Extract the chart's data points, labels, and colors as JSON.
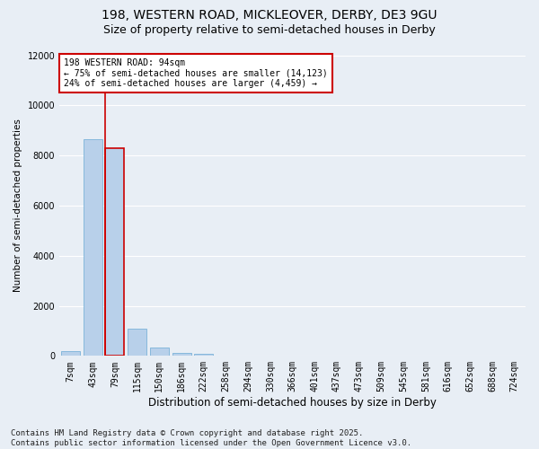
{
  "title_line1": "198, WESTERN ROAD, MICKLEOVER, DERBY, DE3 9GU",
  "title_line2": "Size of property relative to semi-detached houses in Derby",
  "xlabel": "Distribution of semi-detached houses by size in Derby",
  "ylabel": "Number of semi-detached properties",
  "categories": [
    "7sqm",
    "43sqm",
    "79sqm",
    "115sqm",
    "150sqm",
    "186sqm",
    "222sqm",
    "258sqm",
    "294sqm",
    "330sqm",
    "366sqm",
    "401sqm",
    "437sqm",
    "473sqm",
    "509sqm",
    "545sqm",
    "581sqm",
    "616sqm",
    "652sqm",
    "688sqm",
    "724sqm"
  ],
  "values": [
    200,
    8650,
    8300,
    1100,
    350,
    120,
    70,
    0,
    0,
    0,
    0,
    0,
    0,
    0,
    0,
    0,
    0,
    0,
    0,
    0,
    0
  ],
  "bar_color": "#b8d0ea",
  "bar_edge_color": "#6aaad4",
  "highlight_bar_index": 2,
  "highlight_bar_edge_color": "#cc0000",
  "vline_color": "#cc0000",
  "vline_x_index": 2,
  "ylim": [
    0,
    12000
  ],
  "yticks": [
    0,
    2000,
    4000,
    6000,
    8000,
    10000,
    12000
  ],
  "annotation_title": "198 WESTERN ROAD: 94sqm",
  "annotation_line1": "← 75% of semi-detached houses are smaller (14,123)",
  "annotation_line2": "24% of semi-detached houses are larger (4,459) →",
  "annotation_box_color": "#ffffff",
  "annotation_box_edge_color": "#cc0000",
  "footer_line1": "Contains HM Land Registry data © Crown copyright and database right 2025.",
  "footer_line2": "Contains public sector information licensed under the Open Government Licence v3.0.",
  "bg_color": "#e8eef5",
  "plot_bg_color": "#e8eef5",
  "grid_color": "#ffffff",
  "title_fontsize": 10,
  "subtitle_fontsize": 9,
  "tick_fontsize": 7,
  "ylabel_fontsize": 7.5,
  "xlabel_fontsize": 8.5,
  "annotation_fontsize": 7,
  "footer_fontsize": 6.5
}
